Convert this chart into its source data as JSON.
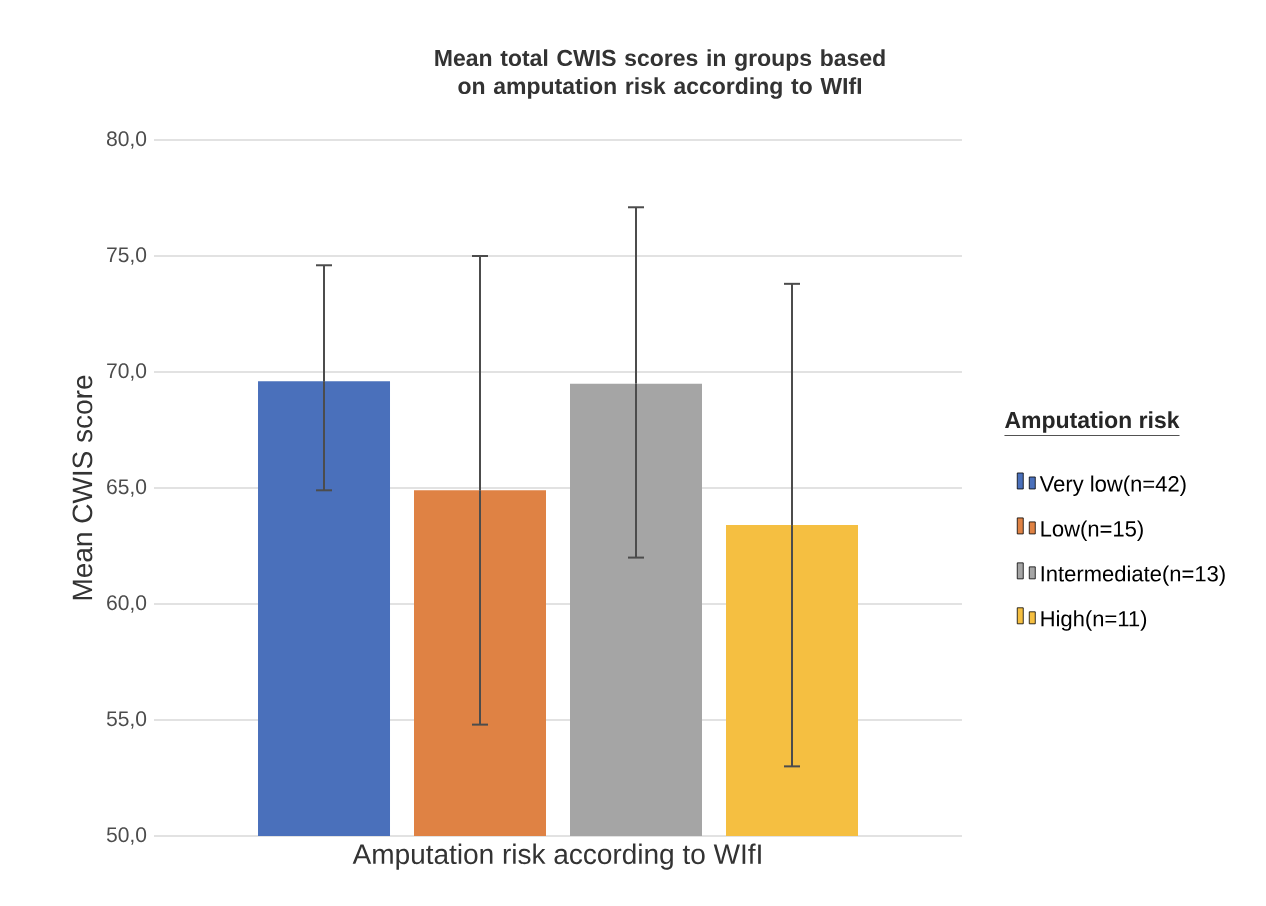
{
  "chart_data": {
    "type": "bar",
    "title": "Mean total CWIS scores in groups based on amputation risk according to WIfI",
    "xlabel": "Amputation risk according to WIfI",
    "ylabel": "Mean CWIS score",
    "legend_title": "Amputation risk",
    "categories": [
      null
    ],
    "series": [
      {
        "name": "Very low(n=42)",
        "color": "#4a70bb",
        "values": [
          69.6
        ],
        "errors": [
          [
            64.9,
            74.6
          ]
        ]
      },
      {
        "name": "Low(n=15)",
        "color": "#df8244",
        "values": [
          64.9
        ],
        "errors": [
          [
            54.8,
            75.0
          ]
        ]
      },
      {
        "name": "Intermediate(n=13)",
        "color": "#a5a5a5",
        "values": [
          69.5
        ],
        "errors": [
          [
            62.0,
            77.1
          ]
        ]
      },
      {
        "name": "High(n=11)",
        "color": "#f5bf41",
        "values": [
          63.4
        ],
        "errors": [
          [
            53.0,
            73.8
          ]
        ]
      }
    ],
    "ylim": [
      50,
      80
    ],
    "yticks": [
      {
        "value": 50,
        "label": "50,0"
      },
      {
        "value": 55,
        "label": "55,0"
      },
      {
        "value": 60,
        "label": "60,0"
      },
      {
        "value": 65,
        "label": "65,0"
      },
      {
        "value": 70,
        "label": "70,0"
      },
      {
        "value": 75,
        "label": "75,0"
      },
      {
        "value": 80,
        "label": "80,0"
      }
    ],
    "grid": "y",
    "legend": "right"
  }
}
